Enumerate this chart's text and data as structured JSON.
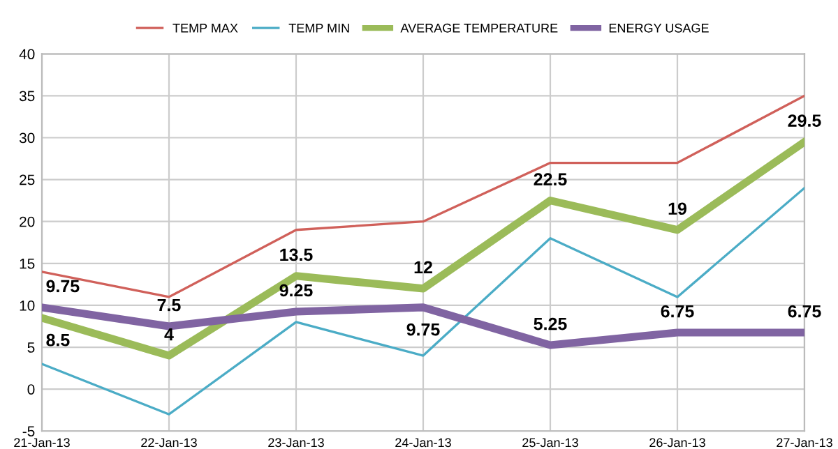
{
  "chart_data": {
    "type": "line",
    "categories": [
      "21-Jan-13",
      "22-Jan-13",
      "23-Jan-13",
      "24-Jan-13",
      "25-Jan-13",
      "26-Jan-13",
      "27-Jan-13"
    ],
    "series": [
      {
        "name": "TEMP MAX",
        "color": "#d0605a",
        "values": [
          14,
          11,
          19,
          20,
          27,
          27,
          35
        ]
      },
      {
        "name": "TEMP MIN",
        "color": "#4bacc6",
        "values": [
          3,
          -3,
          8,
          4,
          18,
          11,
          24
        ]
      },
      {
        "name": "AVERAGE TEMPERATURE",
        "color": "#9bbb59",
        "values": [
          8.5,
          4,
          13.5,
          12,
          22.5,
          19,
          29.5
        ],
        "value_labels": [
          "8.5",
          "4",
          "13.5",
          "12",
          "22.5",
          "19",
          "29.5"
        ]
      },
      {
        "name": "ENERGY USAGE",
        "color": "#8064a2",
        "values": [
          9.75,
          7.5,
          9.25,
          9.75,
          5.25,
          6.75,
          6.75
        ],
        "value_labels": [
          "9.75",
          "7.5",
          "9.25",
          "9.75",
          "5.25",
          "6.75",
          "6.75"
        ]
      }
    ],
    "ylim": [
      -5,
      40
    ],
    "yticks": [
      -5,
      0,
      5,
      10,
      15,
      20,
      25,
      30,
      35,
      40
    ],
    "grid": true,
    "legend": "top",
    "marker": "none",
    "line_style": "solid"
  }
}
